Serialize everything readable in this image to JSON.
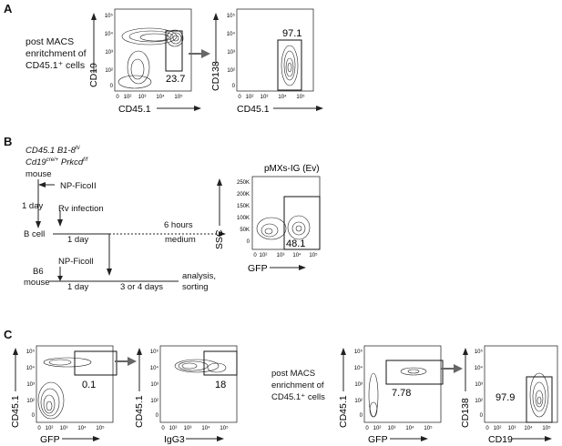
{
  "panels": {
    "A": {
      "letter": "A",
      "side_label": [
        "post MACS",
        "enritchment of",
        "CD45.1⁺ cells"
      ],
      "plot1": {
        "ylabel": "CD19",
        "xlabel": "CD45.1",
        "gate": "23.7",
        "yticks": [
          "10⁵",
          "10⁴",
          "10³",
          "10²",
          "0"
        ],
        "xticks": [
          "0",
          "10²",
          "10³",
          "10⁴",
          "10⁵"
        ]
      },
      "plot2": {
        "ylabel": "CD138",
        "xlabel": "CD45.1",
        "gate": "97.1",
        "yticks": [
          "10⁵",
          "10⁴",
          "10³",
          "10²",
          "0"
        ],
        "xticks": [
          "0",
          "10²",
          "10³",
          "10⁴",
          "10⁵"
        ]
      }
    },
    "B": {
      "letter": "B",
      "mouse1_line1": "CD45.1 B1-8",
      "mouse1_line1_sup": "hi",
      "mouse1_line2a": "Cd19",
      "mouse1_line2a_sup": "cre/+",
      "mouse1_line2b": " Prkcd",
      "mouse1_line2b_sup": "f/f",
      "mouse1_line3": "mouse",
      "np_ficoll_1": "NP-FicoII",
      "day_1": "1 day",
      "rv_infection": "Rv infection",
      "b_cell": "B cell",
      "day_2": "1 day",
      "six_hours": "6 hours",
      "medium": "medium",
      "b6": "B6",
      "mouse2": "mouse",
      "np_ficoll_2": "NP-Ficoll",
      "day_3": "1 day",
      "three_or_four": "3 or 4 days",
      "analysis": "analysis,",
      "sorting": "sorting",
      "plot": {
        "title": "pMXs-IG (Ev)",
        "ylabel": "SSC",
        "xlabel": "GFP",
        "gate": "48.1",
        "yticks": [
          "250K",
          "200K",
          "150K",
          "100K",
          "50K",
          "0"
        ],
        "xticks": [
          "0",
          "10²",
          "10³",
          "10⁴",
          "10⁵"
        ]
      }
    },
    "C": {
      "letter": "C",
      "plot1": {
        "ylabel": "CD45.1",
        "xlabel": "GFP",
        "gate": "0.1",
        "yticks": [
          "10⁵",
          "10⁴",
          "10³",
          "10²",
          "0"
        ],
        "xticks": [
          "0",
          "10²",
          "10³",
          "10⁴",
          "10⁵"
        ]
      },
      "plot2": {
        "ylabel": "CD45.1",
        "xlabel": "IgG3",
        "gate": "18",
        "yticks": [
          "10⁵",
          "10⁴",
          "10³",
          "10²",
          "0"
        ],
        "xticks": [
          "0",
          "10²",
          "10³",
          "10⁴",
          "10⁵"
        ]
      },
      "side_label": [
        "post MACS",
        "enrichment of",
        "CD45.1⁺ cells"
      ],
      "plot3": {
        "ylabel": "CD45.1",
        "xlabel": "GFP",
        "gate": "7.78",
        "yticks": [
          "10⁵",
          "10⁴",
          "10³",
          "10²",
          "0"
        ],
        "xticks": [
          "0",
          "10²",
          "10³",
          "10⁴",
          "10⁵"
        ]
      },
      "plot4": {
        "ylabel": "CD138",
        "xlabel": "CD19",
        "gate": "97.9",
        "yticks": [
          "10⁵",
          "10⁴",
          "10³",
          "10²",
          "0"
        ],
        "xticks": [
          "0",
          "10²",
          "10³",
          "10⁴",
          "10⁵"
        ]
      }
    }
  }
}
